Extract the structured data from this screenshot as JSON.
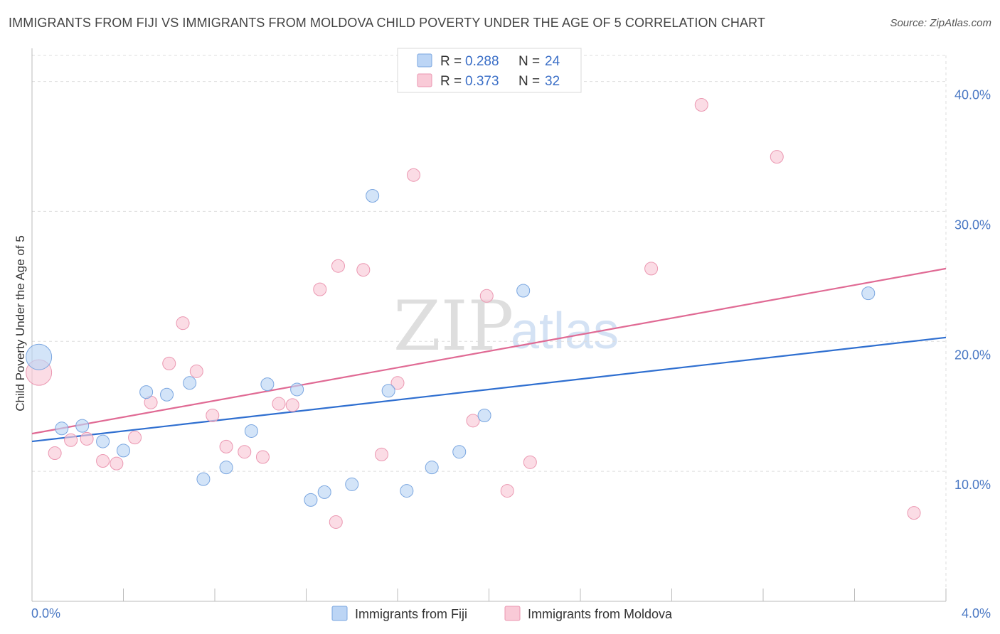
{
  "title": "IMMIGRANTS FROM FIJI VS IMMIGRANTS FROM MOLDOVA CHILD POVERTY UNDER THE AGE OF 5 CORRELATION CHART",
  "source": "Source: ZipAtlas.com",
  "watermark": {
    "zip": "ZIP",
    "atlas": "atlas"
  },
  "legend": {
    "rows": [
      {
        "r_label": "R =",
        "r_value": "0.288",
        "n_label": "N =",
        "n_value": "24"
      },
      {
        "r_label": "R =",
        "r_value": "0.373",
        "n_label": "N =",
        "n_value": "32"
      }
    ]
  },
  "colors": {
    "fiji_fill": "#bcd5f5",
    "fiji_stroke": "#7aa6e0",
    "fiji_line": "#2f6fd0",
    "moldova_fill": "#f9cad7",
    "moldova_stroke": "#eb97b1",
    "moldova_line": "#e06a94",
    "axis_label": "#4a78c4",
    "grid": "#dddddd"
  },
  "chart_data": {
    "type": "scatter",
    "title": "IMMIGRANTS FROM FIJI VS IMMIGRANTS FROM MOLDOVA CHILD POVERTY UNDER THE AGE OF 5 CORRELATION CHART",
    "xlabel": "",
    "ylabel": "Child Poverty Under the Age of 5",
    "xlim": [
      0,
      4
    ],
    "ylim": [
      0,
      42
    ],
    "x_tick_labels": [
      "0.0%",
      "4.0%"
    ],
    "y_ticks": [
      10,
      20,
      30,
      40
    ],
    "y_tick_labels": [
      "10.0%",
      "20.0%",
      "30.0%",
      "40.0%"
    ],
    "grid": true,
    "legend_position": "bottom-center",
    "series": [
      {
        "name": "Immigrants from Fiji",
        "r": 0.288,
        "n": 24,
        "trend": {
          "x": [
            0,
            4
          ],
          "y": [
            12.3,
            20.3
          ]
        },
        "points": [
          {
            "x": 0.03,
            "y": 18.8,
            "big": true
          },
          {
            "x": 0.13,
            "y": 13.3
          },
          {
            "x": 0.22,
            "y": 13.5
          },
          {
            "x": 0.31,
            "y": 12.3
          },
          {
            "x": 0.4,
            "y": 11.6
          },
          {
            "x": 0.5,
            "y": 16.1
          },
          {
            "x": 0.59,
            "y": 15.9
          },
          {
            "x": 0.69,
            "y": 16.8
          },
          {
            "x": 0.75,
            "y": 9.4
          },
          {
            "x": 0.85,
            "y": 10.3
          },
          {
            "x": 0.96,
            "y": 13.1
          },
          {
            "x": 1.03,
            "y": 16.7
          },
          {
            "x": 1.16,
            "y": 16.3
          },
          {
            "x": 1.22,
            "y": 7.8
          },
          {
            "x": 1.28,
            "y": 8.4
          },
          {
            "x": 1.4,
            "y": 9.0
          },
          {
            "x": 1.49,
            "y": 31.2
          },
          {
            "x": 1.56,
            "y": 16.2
          },
          {
            "x": 1.64,
            "y": 8.5
          },
          {
            "x": 1.75,
            "y": 10.3
          },
          {
            "x": 1.87,
            "y": 11.5
          },
          {
            "x": 1.98,
            "y": 14.3
          },
          {
            "x": 2.15,
            "y": 23.9
          },
          {
            "x": 3.66,
            "y": 23.7
          }
        ]
      },
      {
        "name": "Immigrants from Moldova",
        "r": 0.373,
        "n": 32,
        "trend": {
          "x": [
            0,
            4
          ],
          "y": [
            12.9,
            25.6
          ]
        },
        "points": [
          {
            "x": 0.03,
            "y": 17.6,
            "big": true
          },
          {
            "x": 0.1,
            "y": 11.4
          },
          {
            "x": 0.17,
            "y": 12.4
          },
          {
            "x": 0.24,
            "y": 12.5
          },
          {
            "x": 0.31,
            "y": 10.8
          },
          {
            "x": 0.37,
            "y": 10.6
          },
          {
            "x": 0.45,
            "y": 12.6
          },
          {
            "x": 0.52,
            "y": 15.3
          },
          {
            "x": 0.6,
            "y": 18.3
          },
          {
            "x": 0.66,
            "y": 21.4
          },
          {
            "x": 0.72,
            "y": 17.7
          },
          {
            "x": 0.79,
            "y": 14.3
          },
          {
            "x": 0.85,
            "y": 11.9
          },
          {
            "x": 0.93,
            "y": 11.5
          },
          {
            "x": 1.01,
            "y": 11.1
          },
          {
            "x": 1.08,
            "y": 15.2
          },
          {
            "x": 1.14,
            "y": 15.1
          },
          {
            "x": 1.26,
            "y": 24.0
          },
          {
            "x": 1.34,
            "y": 25.8
          },
          {
            "x": 1.33,
            "y": 6.1
          },
          {
            "x": 1.45,
            "y": 25.5
          },
          {
            "x": 1.53,
            "y": 11.3
          },
          {
            "x": 1.6,
            "y": 16.8
          },
          {
            "x": 1.67,
            "y": 32.8
          },
          {
            "x": 1.93,
            "y": 13.9
          },
          {
            "x": 1.99,
            "y": 23.5
          },
          {
            "x": 2.08,
            "y": 8.5
          },
          {
            "x": 2.18,
            "y": 10.7
          },
          {
            "x": 2.71,
            "y": 25.6
          },
          {
            "x": 2.93,
            "y": 38.2
          },
          {
            "x": 3.26,
            "y": 34.2
          },
          {
            "x": 3.86,
            "y": 6.8
          }
        ]
      }
    ]
  }
}
